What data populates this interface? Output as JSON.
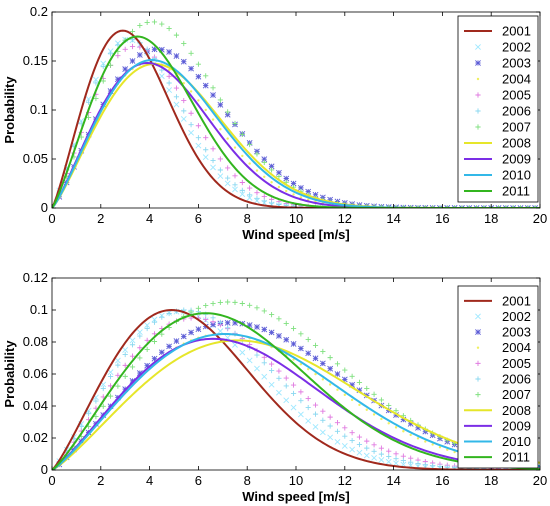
{
  "chart_data": [
    {
      "type": "line",
      "xlabel": "Wind speed [m/s]",
      "ylabel": "Probability",
      "xlim": [
        0,
        20
      ],
      "ylim": [
        0,
        0.2
      ],
      "xticks": [
        0,
        2,
        4,
        6,
        8,
        10,
        12,
        14,
        16,
        18,
        20
      ],
      "yticks": [
        0,
        0.05,
        0.1,
        0.15,
        0.2
      ],
      "xtick_labels": [
        "0",
        "2",
        "4",
        "6",
        "8",
        "10",
        "12",
        "14",
        "16",
        "18",
        "20"
      ],
      "ytick_labels": [
        "0",
        "0.05",
        "0.1",
        "0.15",
        "0.2"
      ],
      "legend_position": "top-right",
      "grid": false,
      "series": [
        {
          "name": "2001",
          "color": "#a0291d",
          "style": "line",
          "mode": 2.9,
          "peak": 0.181
        },
        {
          "name": "2002",
          "color": "#9ee8ff",
          "style": "marker-x",
          "mode": 3.1,
          "peak": 0.172
        },
        {
          "name": "2003",
          "color": "#5c5cd6",
          "style": "marker-star",
          "mode": 4.3,
          "peak": 0.162
        },
        {
          "name": "2004",
          "color": "#f0f060",
          "style": "marker-dot",
          "mode": 4.0,
          "peak": 0.148
        },
        {
          "name": "2005",
          "color": "#e07ae0",
          "style": "marker-plus",
          "mode": 3.4,
          "peak": 0.165
        },
        {
          "name": "2006",
          "color": "#8ad8f0",
          "style": "marker-plus",
          "mode": 3.2,
          "peak": 0.172
        },
        {
          "name": "2007",
          "color": "#7fe07f",
          "style": "marker-plus",
          "mode": 4.1,
          "peak": 0.19
        },
        {
          "name": "2008",
          "color": "#e6e62a",
          "style": "line",
          "mode": 4.2,
          "peak": 0.147
        },
        {
          "name": "2009",
          "color": "#7b2ee6",
          "style": "line",
          "mode": 3.9,
          "peak": 0.148
        },
        {
          "name": "2010",
          "color": "#33b8e8",
          "style": "line",
          "mode": 4.1,
          "peak": 0.151
        },
        {
          "name": "2011",
          "color": "#33b51f",
          "style": "line",
          "mode": 3.5,
          "peak": 0.175
        }
      ]
    },
    {
      "type": "line",
      "xlabel": "Wind speed [m/s]",
      "ylabel": "Probability",
      "xlim": [
        0,
        20
      ],
      "ylim": [
        0,
        0.12
      ],
      "xticks": [
        0,
        2,
        4,
        6,
        8,
        10,
        12,
        14,
        16,
        18,
        20
      ],
      "yticks": [
        0,
        0.02,
        0.04,
        0.06,
        0.08,
        0.1,
        0.12
      ],
      "xtick_labels": [
        "0",
        "2",
        "4",
        "6",
        "8",
        "10",
        "12",
        "14",
        "16",
        "18",
        "20"
      ],
      "ytick_labels": [
        "0",
        "0.02",
        "0.04",
        "0.06",
        "0.08",
        "0.1",
        "0.12"
      ],
      "legend_position": "top-right",
      "grid": false,
      "series": [
        {
          "name": "2001",
          "color": "#a0291d",
          "style": "line",
          "mode": 4.9,
          "peak": 0.1
        },
        {
          "name": "2002",
          "color": "#9ee8ff",
          "style": "marker-x",
          "mode": 5.2,
          "peak": 0.099
        },
        {
          "name": "2003",
          "color": "#5c5cd6",
          "style": "marker-star",
          "mode": 7.3,
          "peak": 0.092
        },
        {
          "name": "2004",
          "color": "#f0f060",
          "style": "marker-dot",
          "mode": 7.0,
          "peak": 0.085
        },
        {
          "name": "2005",
          "color": "#e07ae0",
          "style": "marker-plus",
          "mode": 5.8,
          "peak": 0.095
        },
        {
          "name": "2006",
          "color": "#8ad8f0",
          "style": "marker-plus",
          "mode": 5.5,
          "peak": 0.1
        },
        {
          "name": "2007",
          "color": "#7fe07f",
          "style": "marker-plus",
          "mode": 7.2,
          "peak": 0.105
        },
        {
          "name": "2008",
          "color": "#e6e62a",
          "style": "line",
          "mode": 7.6,
          "peak": 0.081
        },
        {
          "name": "2009",
          "color": "#7b2ee6",
          "style": "line",
          "mode": 6.6,
          "peak": 0.082
        },
        {
          "name": "2010",
          "color": "#33b8e8",
          "style": "line",
          "mode": 7.1,
          "peak": 0.085
        },
        {
          "name": "2011",
          "color": "#33b51f",
          "style": "line",
          "mode": 6.3,
          "peak": 0.098
        }
      ]
    }
  ]
}
